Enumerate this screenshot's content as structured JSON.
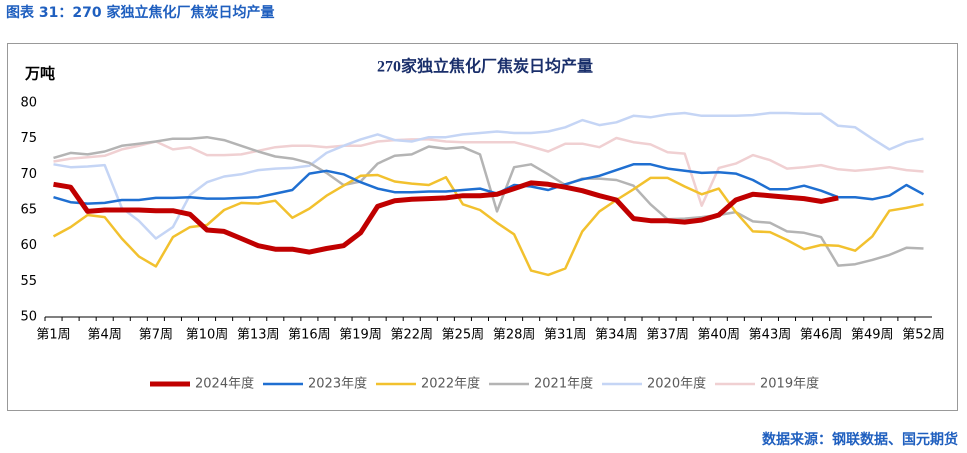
{
  "page_title": "图表 31：270 家独立焦化厂焦炭日均产量",
  "source": "数据来源：钢联数据、国元期货",
  "chart_data": {
    "type": "line",
    "title": "270家独立焦化厂焦炭日均产量",
    "y_label": "万吨",
    "categories": [
      "第1周",
      null,
      null,
      "第4周",
      null,
      null,
      "第7周",
      null,
      null,
      "第10周",
      null,
      null,
      "第13周",
      null,
      null,
      "第16周",
      null,
      null,
      "第19周",
      null,
      null,
      "第22周",
      null,
      null,
      "第25周",
      null,
      null,
      "第28周",
      null,
      null,
      "第31周",
      null,
      null,
      "第34周",
      null,
      null,
      "第37周",
      null,
      null,
      "第40周",
      null,
      null,
      "第43周",
      null,
      null,
      "第46周",
      null,
      null,
      "第49周",
      null,
      null,
      "第52周"
    ],
    "ylim": [
      50,
      80
    ],
    "yticks": [
      50,
      55,
      60,
      65,
      70,
      75,
      80
    ],
    "grid": false,
    "legend": "bottom",
    "series": [
      {
        "name": "2024年度",
        "color": "#c00000",
        "values": [
          68.6,
          68.2,
          64.8,
          65,
          65,
          65,
          64.9,
          64.9,
          64.4,
          62.2,
          62,
          61,
          60,
          59.5,
          59.5,
          59.1,
          59.6,
          60,
          61.8,
          65.5,
          66.3,
          66.5,
          66.6,
          66.7,
          67,
          67,
          67.2,
          68,
          68.8,
          68.6,
          68.2,
          67.7,
          67,
          66.4,
          63.8,
          63.5,
          63.5,
          63.3,
          63.6,
          64.3,
          66.4,
          67.2,
          67,
          66.8,
          66.6,
          66.2,
          66.7,
          null,
          null,
          null,
          null,
          null
        ]
      },
      {
        "name": "2023年度",
        "color": "#1f6fd1",
        "values": [
          66.8,
          66.1,
          65.9,
          66,
          66.4,
          66.4,
          66.7,
          66.7,
          66.8,
          66.6,
          66.6,
          66.7,
          66.8,
          67.3,
          67.8,
          70.1,
          70.5,
          70,
          68.9,
          68,
          67.5,
          67.5,
          67.6,
          67.6,
          67.8,
          68,
          67.3,
          68.5,
          68.3,
          67.8,
          68.6,
          69.3,
          69.8,
          70.6,
          71.4,
          71.4,
          70.8,
          70.5,
          70.2,
          70.3,
          70.1,
          69.2,
          67.9,
          67.9,
          68.4,
          67.7,
          66.8,
          66.8,
          66.5,
          67,
          68.5,
          67.2
        ]
      },
      {
        "name": "2022年度",
        "color": "#f2c12e",
        "values": [
          61.3,
          62.6,
          64.3,
          64,
          61,
          58.5,
          57.1,
          61.2,
          62.6,
          62.9,
          65,
          66,
          65.9,
          66.3,
          63.9,
          65.2,
          67,
          68.4,
          69.8,
          69.9,
          69,
          68.7,
          68.5,
          69.6,
          65.8,
          65,
          63.2,
          61.6,
          56.5,
          55.9,
          56.8,
          62,
          64.8,
          66.4,
          67.9,
          69.5,
          69.5,
          68.3,
          67.2,
          68,
          64.7,
          62,
          61.9,
          60.8,
          59.5,
          60.1,
          60,
          59.3,
          61.3,
          64.9,
          65.3,
          65.8
        ]
      },
      {
        "name": "2021年度",
        "color": "#b4b4b4",
        "values": [
          72.3,
          73,
          72.8,
          73.2,
          74,
          74.3,
          74.6,
          75,
          75,
          75.2,
          74.8,
          74,
          73.2,
          72.5,
          72.2,
          71.6,
          70.2,
          68.5,
          69,
          71.5,
          72.6,
          72.8,
          73.9,
          73.6,
          73.8,
          72.8,
          64.8,
          71,
          71.4,
          70,
          68.5,
          69.4,
          69.4,
          69.2,
          68.4,
          65.8,
          63.7,
          63.8,
          64,
          64.3,
          64.7,
          63.4,
          63.2,
          62,
          61.8,
          61.2,
          57.2,
          57.4,
          58,
          58.7,
          59.7,
          59.6
        ]
      },
      {
        "name": "2020年度",
        "color": "#c5d5f5",
        "values": [
          71.4,
          71,
          71.1,
          71.3,
          65.3,
          63.5,
          61,
          62.6,
          67.1,
          68.9,
          69.7,
          70,
          70.6,
          70.8,
          70.9,
          71.2,
          73,
          74,
          74.9,
          75.6,
          74.8,
          74.6,
          75.2,
          75.2,
          75.6,
          75.8,
          76,
          75.8,
          75.8,
          76,
          76.6,
          77.6,
          76.9,
          77.3,
          78.2,
          78,
          78.4,
          78.6,
          78.2,
          78.2,
          78.2,
          78.3,
          78.6,
          78.6,
          78.5,
          78.5,
          76.8,
          76.6,
          75,
          73.5,
          74.5,
          75
        ]
      },
      {
        "name": "2019年度",
        "color": "#f0d0d2",
        "values": [
          71.8,
          72.2,
          72.4,
          72.6,
          73.5,
          74,
          74.6,
          73.5,
          73.8,
          72.7,
          72.7,
          72.8,
          73.3,
          73.8,
          74,
          74,
          73.8,
          74,
          74,
          74.6,
          74.8,
          74.9,
          74.9,
          74.6,
          74.5,
          74.5,
          74.5,
          74.5,
          73.9,
          73.2,
          74.3,
          74.3,
          73.8,
          75.1,
          74.5,
          74.2,
          73.1,
          72.9,
          65.6,
          70.9,
          71.5,
          72.7,
          72,
          70.8,
          71,
          71.3,
          70.7,
          70.5,
          70.7,
          71,
          70.6,
          70.4
        ]
      }
    ]
  }
}
